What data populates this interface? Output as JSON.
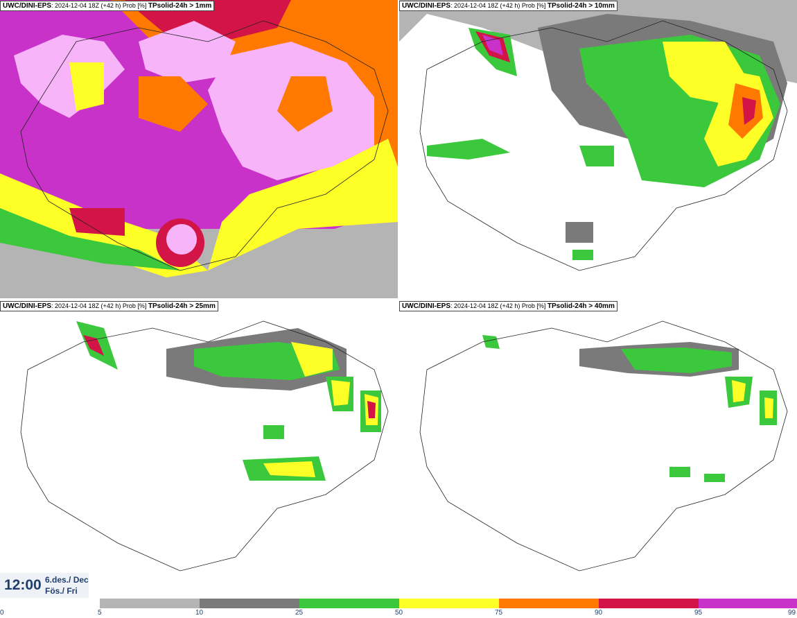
{
  "panels": [
    {
      "model": "UWC/DINI-EPS",
      "run": "2024-12-04 18Z (+42 h) Prob [%]",
      "field": "TPsolid-24h > 1mm"
    },
    {
      "model": "UWC/DINI-EPS",
      "run": "2024-12-04 18Z (+42 h) Prob [%]",
      "field": "TPsolid-24h > 10mm"
    },
    {
      "model": "UWC/DINI-EPS",
      "run": "2024-12-04 18Z (+42 h) Prob [%]",
      "field": "TPsolid-24h > 25mm"
    },
    {
      "model": "UWC/DINI-EPS",
      "run": "2024-12-04 18Z (+42 h) Prob [%]",
      "field": "TPsolid-24h > 40mm"
    }
  ],
  "valid": {
    "time": "12:00",
    "date_line1": "6.des./ Dec",
    "date_line2": "Fös./ Fri"
  },
  "legend": {
    "ticks": [
      "0",
      "5",
      "10",
      "25",
      "50",
      "75",
      "90",
      "95",
      "99"
    ],
    "colors": [
      "#b4b4b4",
      "#7a7a7a",
      "#3cc83c",
      "#ffff28",
      "#ff7800",
      "#d21446",
      "#c832c8",
      "#f8b4f8"
    ]
  },
  "icons": {
    "map": "iceland-map"
  }
}
